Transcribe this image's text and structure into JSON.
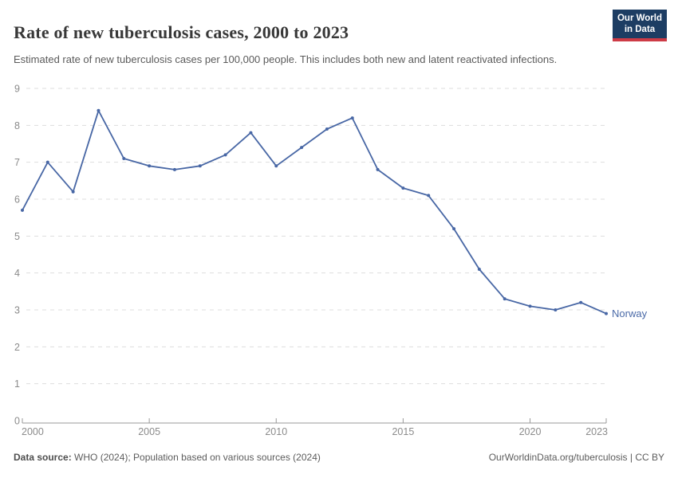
{
  "header": {
    "title": "Rate of new tuberculosis cases, 2000 to 2023",
    "subtitle": "Estimated rate of new tuberculosis cases per 100,000 people. This includes both new and latent reactivated infections."
  },
  "logo": {
    "line1": "Our World",
    "line2": "in Data",
    "bg_color": "#1d3d63",
    "bar_color": "#cd3b46"
  },
  "chart_data": {
    "type": "line",
    "title": "Rate of new tuberculosis cases, 2000 to 2023",
    "xlabel": "",
    "ylabel": "",
    "xlim": [
      2000,
      2023
    ],
    "ylim": [
      0,
      9
    ],
    "x_ticks": [
      2000,
      2005,
      2010,
      2015,
      2020,
      2023
    ],
    "y_ticks": [
      0,
      1,
      2,
      3,
      4,
      5,
      6,
      7,
      8,
      9
    ],
    "grid": "horizontal-dashed",
    "legend_position": "end-of-line-label",
    "series": [
      {
        "name": "Norway",
        "x": [
          2000,
          2001,
          2002,
          2003,
          2004,
          2005,
          2006,
          2007,
          2008,
          2009,
          2010,
          2011,
          2012,
          2013,
          2014,
          2015,
          2016,
          2017,
          2018,
          2019,
          2020,
          2021,
          2022,
          2023
        ],
        "values": [
          5.7,
          7.0,
          6.2,
          8.4,
          7.1,
          6.9,
          6.8,
          6.9,
          7.2,
          7.8,
          6.9,
          7.4,
          7.9,
          8.2,
          6.8,
          6.3,
          6.1,
          5.2,
          4.1,
          3.3,
          3.1,
          3.0,
          3.2,
          2.9
        ]
      }
    ],
    "colors": {
      "line": "#4867a5",
      "series_label": "#4c6ba8",
      "grid": "#dddddd",
      "axis": "#999999",
      "tick_label": "#8b8b8b"
    }
  },
  "footer": {
    "source_label": "Data source:",
    "source_text": " WHO (2024); Population based on various sources (2024)",
    "credit": "OurWorldinData.org/tuberculosis | CC BY"
  }
}
